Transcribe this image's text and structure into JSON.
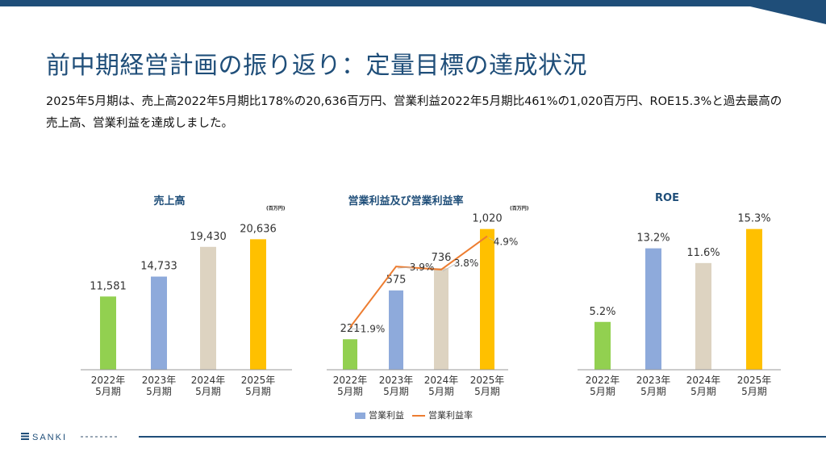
{
  "title": "前中期経営計画の振り返り：定量目標の達成状況",
  "summary": "2025年5月期は、売上高2022年5月期比178%の20,636百万円、営業利益2022年5月期比461%の1,020百万円、ROE15.3%と過去最高の売上高、営業利益を達成しました。",
  "colors": {
    "navy": "#1f4e79",
    "green": "#92d050",
    "blue": "#8eaadb",
    "beige": "#ddd3c1",
    "gold": "#ffc000",
    "orange": "#ed7d31"
  },
  "footer": {
    "logo_text": "SANKI"
  },
  "legend": {
    "bar_label": "営業利益",
    "line_label": "営業利益率"
  },
  "chart_data": [
    {
      "type": "bar",
      "title": "売上高",
      "unit": "(百万円)",
      "categories": [
        "2022年\n5月期",
        "2023年\n5月期",
        "2024年\n5月期",
        "2025年\n5月期"
      ],
      "values": [
        11581,
        14733,
        19430,
        20636
      ],
      "labels": [
        "11,581",
        "14,733",
        "19,430",
        "20,636"
      ],
      "ylim": [
        0,
        24000
      ]
    },
    {
      "type": "bar",
      "title": "営業利益及び営業利益率",
      "unit": "(百万円)",
      "categories": [
        "2022年\n5月期",
        "2023年\n5月期",
        "2024年\n5月期",
        "2025年\n5月期"
      ],
      "series": [
        {
          "name": "営業利益",
          "type": "bar",
          "values": [
            221,
            575,
            736,
            1020
          ],
          "labels": [
            "221",
            "575",
            "736",
            "1,020"
          ]
        },
        {
          "name": "営業利益率",
          "type": "line",
          "values": [
            1.9,
            3.9,
            3.8,
            4.9
          ],
          "labels": [
            "1.9%",
            "3.9%",
            "3.8%",
            "4.9%"
          ]
        }
      ],
      "ylim": [
        0,
        1100
      ],
      "y2lim": [
        0.5,
        5.5
      ]
    },
    {
      "type": "bar",
      "title": "ROE",
      "categories": [
        "2022年\n5月期",
        "2023年\n5月期",
        "2024年\n5月期",
        "2025年\n5月期"
      ],
      "values": [
        5.2,
        13.2,
        11.6,
        15.3
      ],
      "labels": [
        "5.2%",
        "13.2%",
        "11.6%",
        "15.3%"
      ],
      "ylim": [
        0,
        16.5
      ]
    }
  ]
}
